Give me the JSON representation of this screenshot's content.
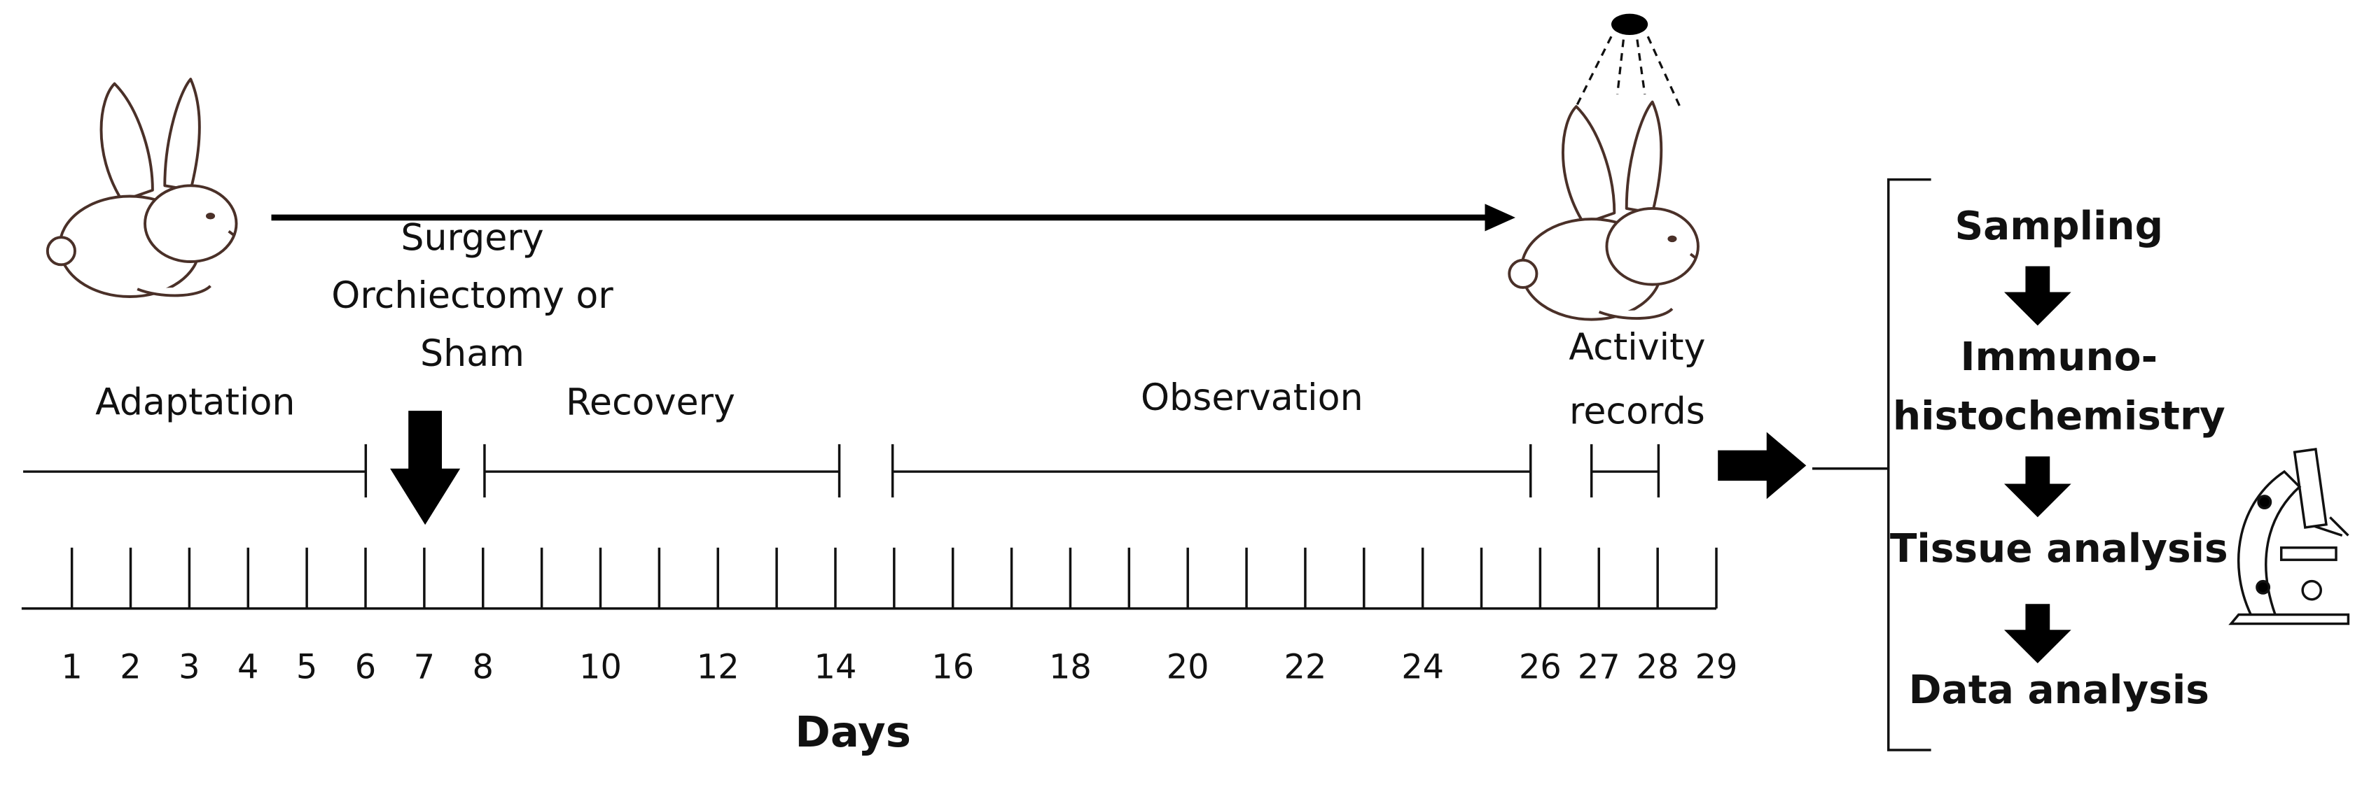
{
  "timeline": {
    "surgery": [
      "Surgery",
      "Orchiectomy or",
      "Sham"
    ],
    "phases": [
      "Adaptation",
      "Recovery",
      "Observation"
    ],
    "activity": [
      "Activity",
      "records"
    ],
    "days": [
      1,
      2,
      3,
      4,
      5,
      6,
      7,
      8,
      10,
      12,
      14,
      16,
      18,
      20,
      22,
      24,
      26,
      27,
      28,
      29
    ],
    "axis_title": "Days"
  },
  "workflow": {
    "steps": [
      [
        "Sampling"
      ],
      [
        "Immuno-",
        "histochemistry"
      ],
      [
        "Tissue analysis"
      ],
      [
        "Data analysis"
      ]
    ]
  }
}
